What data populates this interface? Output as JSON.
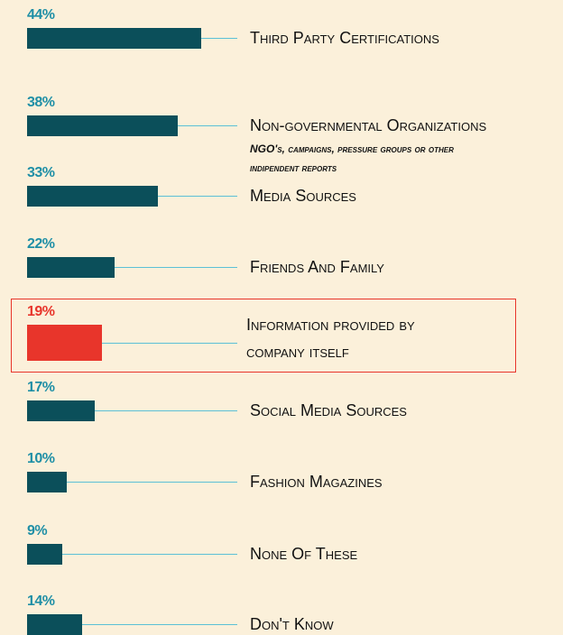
{
  "chart_data": {
    "type": "bar",
    "orientation": "horizontal",
    "categories": [
      "Third Party Certifications",
      "Non-governmental Organizations",
      "Media Sources",
      "Friends And Family",
      "Information provided by company itself",
      "Social Media Sources",
      "Fashion Magazines",
      "None Of These",
      "Don't Know"
    ],
    "subtitles": [
      null,
      "NGO's, campaigns, pressure groups or other indipendent reports",
      null,
      null,
      null,
      null,
      null,
      null,
      null
    ],
    "values": [
      44,
      38,
      33,
      22,
      19,
      17,
      10,
      9,
      14
    ],
    "value_labels": [
      "44%",
      "38%",
      "33%",
      "22%",
      "19%",
      "17%",
      "10%",
      "9%",
      "14%"
    ],
    "color": "#0b4f5a",
    "label_color": "#1f8fa6",
    "highlight_index": 4,
    "highlight_color": "#e8352b"
  }
}
